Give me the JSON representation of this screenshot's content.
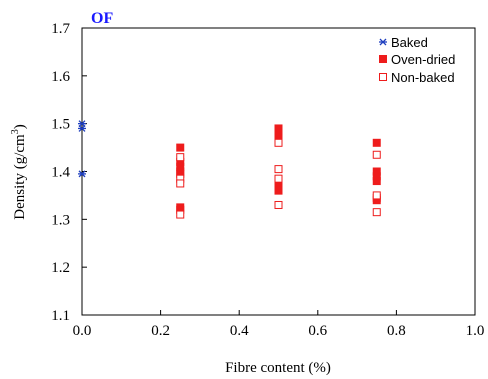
{
  "chart_data": {
    "type": "scatter",
    "panel_label": "OF",
    "xlabel": "Fibre content (%)",
    "ylabel_main": "Density (g/cm",
    "ylabel_sup": "3",
    "ylabel_end": ")",
    "xlim": [
      0.0,
      1.0
    ],
    "ylim": [
      1.1,
      1.7
    ],
    "x_ticks": [
      "0.0",
      "0.2",
      "0.4",
      "0.6",
      "0.8",
      "1.0"
    ],
    "y_ticks": [
      "1.1",
      "1.2",
      "1.3",
      "1.4",
      "1.5",
      "1.6",
      "1.7"
    ],
    "legend_position": "top-right",
    "series": [
      {
        "name": "Baked",
        "marker": "asterisk",
        "color": "#1f3fbf",
        "points": [
          [
            0.0,
            1.5
          ],
          [
            0.0,
            1.49
          ],
          [
            0.0,
            1.395
          ]
        ]
      },
      {
        "name": "Oven-dried",
        "marker": "filled-square",
        "color": "#ee1c1c",
        "points": [
          [
            0.25,
            1.45
          ],
          [
            0.25,
            1.42
          ],
          [
            0.25,
            1.41
          ],
          [
            0.25,
            1.4
          ],
          [
            0.25,
            1.395
          ],
          [
            0.25,
            1.325
          ],
          [
            0.25,
            1.32
          ],
          [
            0.5,
            1.49
          ],
          [
            0.5,
            1.48
          ],
          [
            0.5,
            1.47
          ],
          [
            0.5,
            1.375
          ],
          [
            0.5,
            1.365
          ],
          [
            0.5,
            1.36
          ],
          [
            0.75,
            1.46
          ],
          [
            0.75,
            1.4
          ],
          [
            0.75,
            1.39
          ],
          [
            0.75,
            1.38
          ],
          [
            0.75,
            1.345
          ],
          [
            0.75,
            1.34
          ]
        ]
      },
      {
        "name": "Non-baked",
        "marker": "open-square",
        "color": "#ee1c1c",
        "points": [
          [
            0.25,
            1.43
          ],
          [
            0.25,
            1.385
          ],
          [
            0.25,
            1.375
          ],
          [
            0.25,
            1.31
          ],
          [
            0.5,
            1.46
          ],
          [
            0.5,
            1.405
          ],
          [
            0.5,
            1.385
          ],
          [
            0.5,
            1.33
          ],
          [
            0.75,
            1.435
          ],
          [
            0.75,
            1.35
          ],
          [
            0.75,
            1.315
          ]
        ]
      }
    ]
  }
}
